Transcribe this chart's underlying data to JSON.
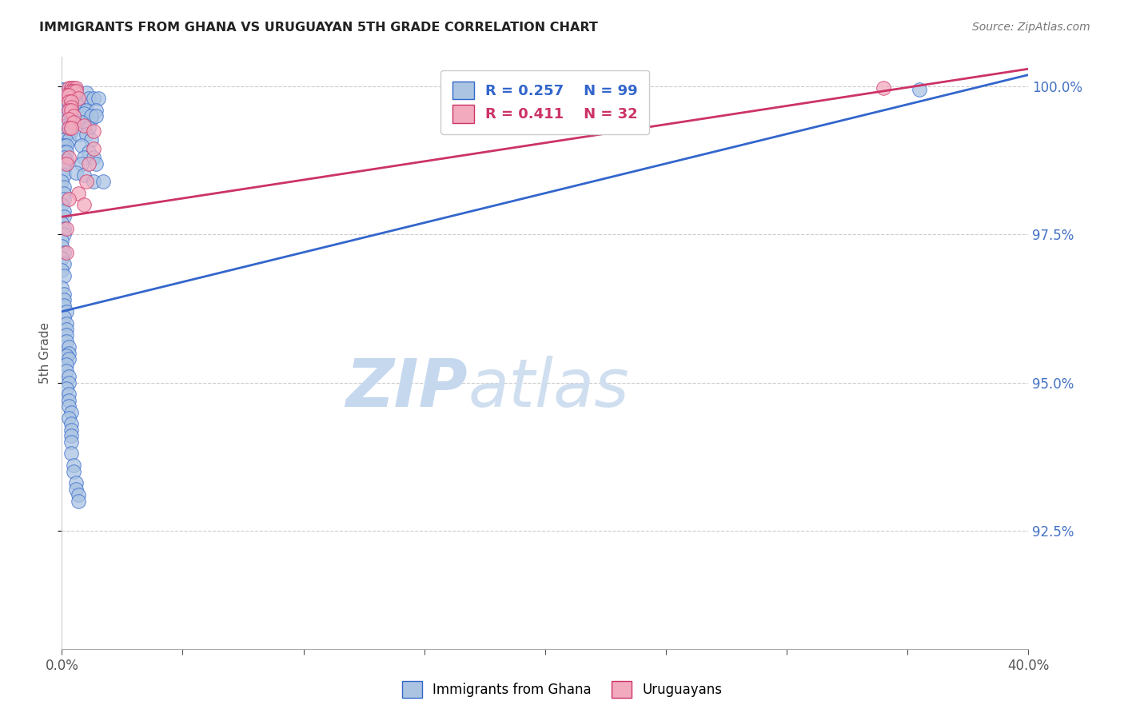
{
  "title": "IMMIGRANTS FROM GHANA VS URUGUAYAN 5TH GRADE CORRELATION CHART",
  "source": "Source: ZipAtlas.com",
  "ylabel": "5th Grade",
  "ylabel_right_labels": [
    "100.0%",
    "97.5%",
    "95.0%",
    "92.5%"
  ],
  "ylabel_right_values": [
    1.0,
    0.975,
    0.95,
    0.925
  ],
  "legend_label1": "Immigrants from Ghana",
  "legend_label2": "Uruguayans",
  "R1": 0.257,
  "N1": 99,
  "R2": 0.411,
  "N2": 32,
  "color_blue": "#aac4e2",
  "color_pink": "#f2aabe",
  "line_color_blue": "#3366cc",
  "line_color_pink": "#cc3366",
  "xlim": [
    0.0,
    0.4
  ],
  "ylim": [
    0.905,
    1.005
  ],
  "blue_line": [
    [
      0.0,
      0.962
    ],
    [
      0.4,
      1.002
    ]
  ],
  "pink_line": [
    [
      0.0,
      0.978
    ],
    [
      0.4,
      1.003
    ]
  ],
  "blue_points": [
    [
      0.0,
      0.9995
    ],
    [
      0.001,
      0.9995
    ],
    [
      0.002,
      0.999
    ],
    [
      0.003,
      0.999
    ],
    [
      0.004,
      0.999
    ],
    [
      0.005,
      0.9995
    ],
    [
      0.006,
      0.9995
    ],
    [
      0.001,
      0.9975
    ],
    [
      0.002,
      0.997
    ],
    [
      0.004,
      0.9975
    ],
    [
      0.005,
      0.997
    ],
    [
      0.007,
      0.997
    ],
    [
      0.009,
      0.997
    ],
    [
      0.002,
      0.996
    ],
    [
      0.003,
      0.996
    ],
    [
      0.005,
      0.995
    ],
    [
      0.007,
      0.995
    ],
    [
      0.009,
      0.994
    ],
    [
      0.012,
      0.9945
    ],
    [
      0.001,
      0.9935
    ],
    [
      0.002,
      0.9935
    ],
    [
      0.004,
      0.994
    ],
    [
      0.001,
      0.992
    ],
    [
      0.002,
      0.992
    ],
    [
      0.004,
      0.9925
    ],
    [
      0.0,
      0.991
    ],
    [
      0.001,
      0.991
    ],
    [
      0.003,
      0.991
    ],
    [
      0.0,
      0.99
    ],
    [
      0.001,
      0.99
    ],
    [
      0.002,
      0.99
    ],
    [
      0.001,
      0.989
    ],
    [
      0.002,
      0.989
    ],
    [
      0.001,
      0.988
    ],
    [
      0.002,
      0.9875
    ],
    [
      0.001,
      0.987
    ],
    [
      0.001,
      0.986
    ],
    [
      0.001,
      0.985
    ],
    [
      0.0,
      0.984
    ],
    [
      0.001,
      0.983
    ],
    [
      0.001,
      0.982
    ],
    [
      0.001,
      0.981
    ],
    [
      0.0,
      0.98
    ],
    [
      0.001,
      0.979
    ],
    [
      0.001,
      0.978
    ],
    [
      0.0,
      0.977
    ],
    [
      0.001,
      0.976
    ],
    [
      0.001,
      0.975
    ],
    [
      0.0,
      0.974
    ],
    [
      0.0,
      0.973
    ],
    [
      0.001,
      0.972
    ],
    [
      0.0,
      0.971
    ],
    [
      0.001,
      0.97
    ],
    [
      0.0,
      0.969
    ],
    [
      0.001,
      0.968
    ],
    [
      0.0,
      0.966
    ],
    [
      0.001,
      0.965
    ],
    [
      0.001,
      0.964
    ],
    [
      0.001,
      0.963
    ],
    [
      0.002,
      0.962
    ],
    [
      0.001,
      0.961
    ],
    [
      0.002,
      0.96
    ],
    [
      0.002,
      0.959
    ],
    [
      0.002,
      0.958
    ],
    [
      0.002,
      0.957
    ],
    [
      0.003,
      0.956
    ],
    [
      0.003,
      0.955
    ],
    [
      0.002,
      0.9545
    ],
    [
      0.003,
      0.954
    ],
    [
      0.002,
      0.953
    ],
    [
      0.002,
      0.952
    ],
    [
      0.003,
      0.951
    ],
    [
      0.003,
      0.95
    ],
    [
      0.002,
      0.949
    ],
    [
      0.003,
      0.948
    ],
    [
      0.003,
      0.947
    ],
    [
      0.003,
      0.946
    ],
    [
      0.004,
      0.945
    ],
    [
      0.003,
      0.944
    ],
    [
      0.004,
      0.943
    ],
    [
      0.004,
      0.942
    ],
    [
      0.004,
      0.941
    ],
    [
      0.004,
      0.94
    ],
    [
      0.004,
      0.938
    ],
    [
      0.005,
      0.936
    ],
    [
      0.005,
      0.935
    ],
    [
      0.006,
      0.933
    ],
    [
      0.006,
      0.932
    ],
    [
      0.007,
      0.931
    ],
    [
      0.007,
      0.93
    ],
    [
      0.01,
      0.999
    ],
    [
      0.011,
      0.998
    ],
    [
      0.013,
      0.998
    ],
    [
      0.015,
      0.998
    ],
    [
      0.01,
      0.996
    ],
    [
      0.014,
      0.996
    ],
    [
      0.009,
      0.9955
    ],
    [
      0.012,
      0.995
    ],
    [
      0.014,
      0.995
    ],
    [
      0.008,
      0.994
    ],
    [
      0.011,
      0.993
    ],
    [
      0.007,
      0.992
    ],
    [
      0.01,
      0.992
    ],
    [
      0.012,
      0.991
    ],
    [
      0.008,
      0.99
    ],
    [
      0.011,
      0.989
    ],
    [
      0.009,
      0.988
    ],
    [
      0.013,
      0.988
    ],
    [
      0.008,
      0.987
    ],
    [
      0.014,
      0.987
    ],
    [
      0.006,
      0.9855
    ],
    [
      0.009,
      0.985
    ],
    [
      0.013,
      0.984
    ],
    [
      0.017,
      0.984
    ],
    [
      0.355,
      0.9995
    ]
  ],
  "pink_points": [
    [
      0.003,
      0.9998
    ],
    [
      0.004,
      0.9998
    ],
    [
      0.005,
      0.9998
    ],
    [
      0.006,
      0.9998
    ],
    [
      0.004,
      0.9993
    ],
    [
      0.005,
      0.9993
    ],
    [
      0.006,
      0.9993
    ],
    [
      0.002,
      0.9985
    ],
    [
      0.003,
      0.9985
    ],
    [
      0.007,
      0.998
    ],
    [
      0.003,
      0.9975
    ],
    [
      0.004,
      0.9975
    ],
    [
      0.004,
      0.9965
    ],
    [
      0.003,
      0.996
    ],
    [
      0.004,
      0.996
    ],
    [
      0.005,
      0.995
    ],
    [
      0.003,
      0.9945
    ],
    [
      0.005,
      0.994
    ],
    [
      0.009,
      0.9935
    ],
    [
      0.003,
      0.993
    ],
    [
      0.004,
      0.993
    ],
    [
      0.013,
      0.9925
    ],
    [
      0.013,
      0.9895
    ],
    [
      0.003,
      0.988
    ],
    [
      0.002,
      0.987
    ],
    [
      0.011,
      0.987
    ],
    [
      0.01,
      0.984
    ],
    [
      0.007,
      0.982
    ],
    [
      0.003,
      0.981
    ],
    [
      0.009,
      0.98
    ],
    [
      0.002,
      0.976
    ],
    [
      0.002,
      0.972
    ],
    [
      0.34,
      0.9998
    ]
  ]
}
